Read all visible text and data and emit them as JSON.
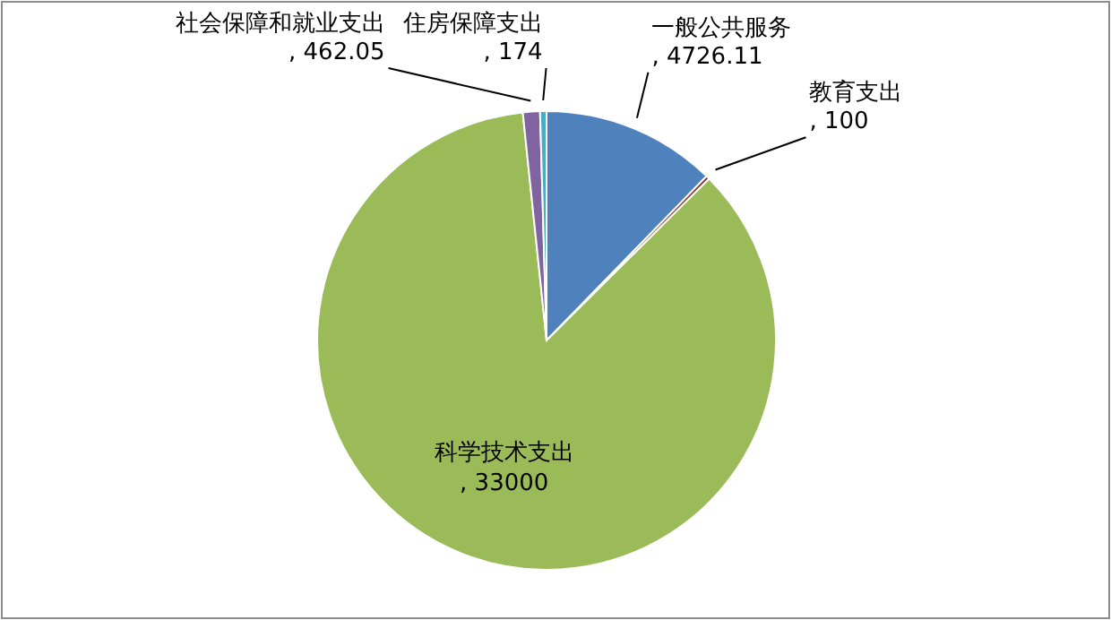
{
  "chart_data": {
    "type": "pie",
    "categories": [
      "一般公共服务",
      "教育支出",
      "科学技术支出",
      "社会保障和就业支出",
      "住房保障支出"
    ],
    "values": [
      4726.11,
      100,
      33000,
      462.05,
      174
    ],
    "colors": [
      "#4f81bd",
      "#8c3836",
      "#9bbb59",
      "#8064a2",
      "#4bacc6"
    ],
    "value_labels": [
      ", 4726.11",
      ", 100",
      ", 33000",
      ", 462.05",
      ", 174"
    ],
    "legend": false
  }
}
